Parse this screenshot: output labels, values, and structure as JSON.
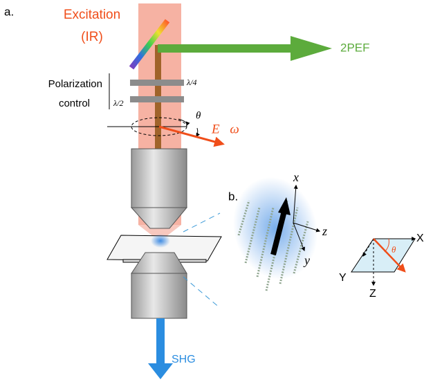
{
  "panel_a": {
    "label": "a.",
    "excitation": "Excitation",
    "excitation_sub": "(IR)",
    "fluorescence": "2PEF",
    "polarization_line1": "Polarization",
    "polarization_line2": "control",
    "quarter_wave": "λ/4",
    "half_wave": "λ/2",
    "angle": "θ",
    "field": "E⃗ω",
    "harmonic": "SHG"
  },
  "panel_b": {
    "label": "b.",
    "molecular_axes": [
      "x",
      "z",
      "y"
    ],
    "lab_axes": [
      "X",
      "Y",
      "Z"
    ],
    "angle": "θ"
  }
}
